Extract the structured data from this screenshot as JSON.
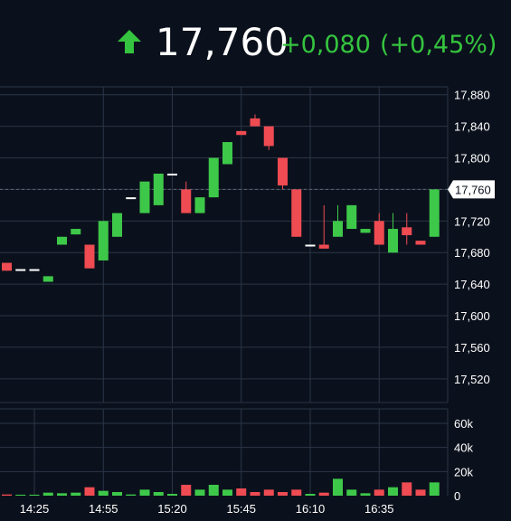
{
  "header": {
    "price": "17,760",
    "change": "+0,080",
    "change_pct": "(+0,45%)",
    "trend_icon": "arrow-up-icon",
    "up_color": "#35c43f"
  },
  "colors": {
    "up": "#3ec84a",
    "down": "#ef4b52",
    "flat": "#ffffff",
    "grid": "#2a3546",
    "background": "#0b111c",
    "text": "#ffffff"
  },
  "chart_data": {
    "type": "candlestick",
    "price_axis": {
      "ticks": [
        "17,880",
        "17,840",
        "17,800",
        "17,760",
        "17,720",
        "17,680",
        "17,640",
        "17,600",
        "17,560",
        "17,520"
      ],
      "tick_values": [
        17.88,
        17.84,
        17.8,
        17.76,
        17.72,
        17.68,
        17.64,
        17.6,
        17.56,
        17.52
      ],
      "range": [
        17.49,
        17.89
      ],
      "current_price_label": "17,760",
      "current_price": 17.76
    },
    "volume_axis": {
      "ticks": [
        "60k",
        "40k",
        "20k",
        "0"
      ],
      "tick_values": [
        60000,
        40000,
        20000,
        0
      ],
      "range": [
        0,
        72000
      ]
    },
    "time_axis": {
      "labels": [
        "14:25",
        "14:55",
        "15:20",
        "15:45",
        "16:10",
        "16:35"
      ]
    },
    "candles": [
      {
        "o": 17.667,
        "h": 17.667,
        "l": 17.657,
        "c": 17.657,
        "v": 1000
      },
      {
        "o": 17.659,
        "h": 17.659,
        "l": 17.659,
        "c": 17.659,
        "v": 800
      },
      {
        "o": 17.659,
        "h": 17.659,
        "l": 17.659,
        "c": 17.659,
        "v": 800
      },
      {
        "o": 17.643,
        "h": 17.65,
        "l": 17.643,
        "c": 17.65,
        "v": 2500
      },
      {
        "o": 17.69,
        "h": 17.7,
        "l": 17.69,
        "c": 17.7,
        "v": 2000
      },
      {
        "o": 17.703,
        "h": 17.71,
        "l": 17.703,
        "c": 17.71,
        "v": 2500
      },
      {
        "o": 17.69,
        "h": 17.69,
        "l": 17.66,
        "c": 17.66,
        "v": 7000
      },
      {
        "o": 17.67,
        "h": 17.72,
        "l": 17.67,
        "c": 17.72,
        "v": 4000
      },
      {
        "o": 17.7,
        "h": 17.73,
        "l": 17.7,
        "c": 17.73,
        "v": 3000
      },
      {
        "o": 17.75,
        "h": 17.75,
        "l": 17.75,
        "c": 17.75,
        "v": 1000
      },
      {
        "o": 17.73,
        "h": 17.77,
        "l": 17.73,
        "c": 17.77,
        "v": 5000
      },
      {
        "o": 17.74,
        "h": 17.78,
        "l": 17.74,
        "c": 17.78,
        "v": 3000
      },
      {
        "o": 17.78,
        "h": 17.78,
        "l": 17.78,
        "c": 17.78,
        "v": 1500
      },
      {
        "o": 17.76,
        "h": 17.77,
        "l": 17.73,
        "c": 17.73,
        "v": 9000
      },
      {
        "o": 17.73,
        "h": 17.75,
        "l": 17.73,
        "c": 17.75,
        "v": 5000
      },
      {
        "o": 17.75,
        "h": 17.8,
        "l": 17.75,
        "c": 17.8,
        "v": 9000
      },
      {
        "o": 17.792,
        "h": 17.82,
        "l": 17.792,
        "c": 17.82,
        "v": 5000
      },
      {
        "o": 17.834,
        "h": 17.834,
        "l": 17.829,
        "c": 17.829,
        "v": 6000
      },
      {
        "o": 17.85,
        "h": 17.855,
        "l": 17.84,
        "c": 17.84,
        "v": 3000
      },
      {
        "o": 17.84,
        "h": 17.84,
        "l": 17.81,
        "c": 17.815,
        "v": 5000
      },
      {
        "o": 17.8,
        "h": 17.8,
        "l": 17.76,
        "c": 17.765,
        "v": 3000
      },
      {
        "o": 17.76,
        "h": 17.76,
        "l": 17.7,
        "c": 17.7,
        "v": 5000
      },
      {
        "o": 17.69,
        "h": 17.69,
        "l": 17.69,
        "c": 17.69,
        "v": 1500
      },
      {
        "o": 17.69,
        "h": 17.74,
        "l": 17.685,
        "c": 17.685,
        "v": 2500
      },
      {
        "o": 17.7,
        "h": 17.74,
        "l": 17.7,
        "c": 17.72,
        "v": 14000
      },
      {
        "o": 17.71,
        "h": 17.74,
        "l": 17.71,
        "c": 17.74,
        "v": 5000
      },
      {
        "o": 17.705,
        "h": 17.71,
        "l": 17.705,
        "c": 17.71,
        "v": 2000
      },
      {
        "o": 17.72,
        "h": 17.73,
        "l": 17.69,
        "c": 17.69,
        "v": 5000
      },
      {
        "o": 17.68,
        "h": 17.73,
        "l": 17.68,
        "c": 17.71,
        "v": 7000
      },
      {
        "o": 17.712,
        "h": 17.73,
        "l": 17.69,
        "c": 17.702,
        "v": 11000
      },
      {
        "o": 17.695,
        "h": 17.695,
        "l": 17.69,
        "c": 17.69,
        "v": 5000
      },
      {
        "o": 17.7,
        "h": 17.76,
        "l": 17.7,
        "c": 17.76,
        "v": 11000
      }
    ]
  }
}
